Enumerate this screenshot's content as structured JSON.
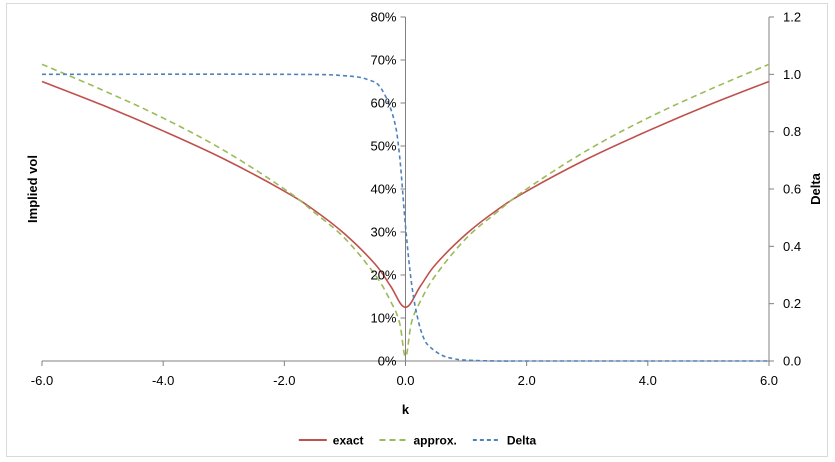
{
  "chart_data": {
    "type": "line",
    "xlabel": "k",
    "ylabel": "Implied vol",
    "y2label": "Delta",
    "xlim": [
      -6,
      6
    ],
    "ylim": [
      0,
      0.8
    ],
    "y2lim": [
      0,
      1.2
    ],
    "x_ticks": [
      "-6.0",
      "-4.0",
      "-2.0",
      "0.0",
      "2.0",
      "4.0",
      "6.0"
    ],
    "y_ticks": [
      "0%",
      "10%",
      "20%",
      "30%",
      "40%",
      "50%",
      "60%",
      "70%",
      "80%"
    ],
    "y2_ticks": [
      "0.0",
      "0.2",
      "0.4",
      "0.6",
      "0.8",
      "1.0",
      "1.2"
    ],
    "grid": false,
    "legend_position": "bottom",
    "colors": {
      "exact": "#C0504D",
      "approx": "#9BBB59",
      "delta": "#4F81BD",
      "axis": "#808080",
      "frame": "#D9D9D9"
    },
    "series": [
      {
        "name": "exact",
        "axis": "left",
        "style": "solid",
        "x": [
          -6,
          -5,
          -4,
          -3,
          -2,
          -1.5,
          -1,
          -0.5,
          -0.25,
          0,
          0.25,
          0.5,
          1,
          1.5,
          2,
          3,
          4,
          5,
          6
        ],
        "y": [
          0.65,
          0.595,
          0.535,
          0.47,
          0.395,
          0.35,
          0.295,
          0.225,
          0.175,
          0.125,
          0.175,
          0.225,
          0.295,
          0.35,
          0.395,
          0.47,
          0.535,
          0.595,
          0.65
        ]
      },
      {
        "name": "approx.",
        "axis": "left",
        "style": "dashed",
        "x": [
          -6,
          -5,
          -4,
          -3,
          -2,
          -1.5,
          -1,
          -0.5,
          -0.25,
          -0.1,
          0,
          0.1,
          0.25,
          0.5,
          1,
          1.5,
          2,
          3,
          4,
          5,
          6
        ],
        "y": [
          0.69,
          0.63,
          0.565,
          0.49,
          0.4,
          0.345,
          0.285,
          0.2,
          0.14,
          0.09,
          0.01,
          0.09,
          0.14,
          0.2,
          0.285,
          0.345,
          0.4,
          0.49,
          0.565,
          0.63,
          0.69
        ]
      },
      {
        "name": "Delta",
        "axis": "right",
        "style": "dashed",
        "x": [
          -6,
          -2,
          -1,
          -0.6,
          -0.4,
          -0.2,
          -0.1,
          0,
          0.1,
          0.2,
          0.3,
          0.4,
          0.6,
          0.8,
          1,
          1.5,
          2,
          4,
          6
        ],
        "y": [
          1.0,
          1.0,
          0.995,
          0.98,
          0.95,
          0.85,
          0.72,
          0.47,
          0.27,
          0.15,
          0.08,
          0.05,
          0.02,
          0.008,
          0.003,
          0.0,
          0.0,
          0.0,
          0.0
        ]
      }
    ]
  }
}
